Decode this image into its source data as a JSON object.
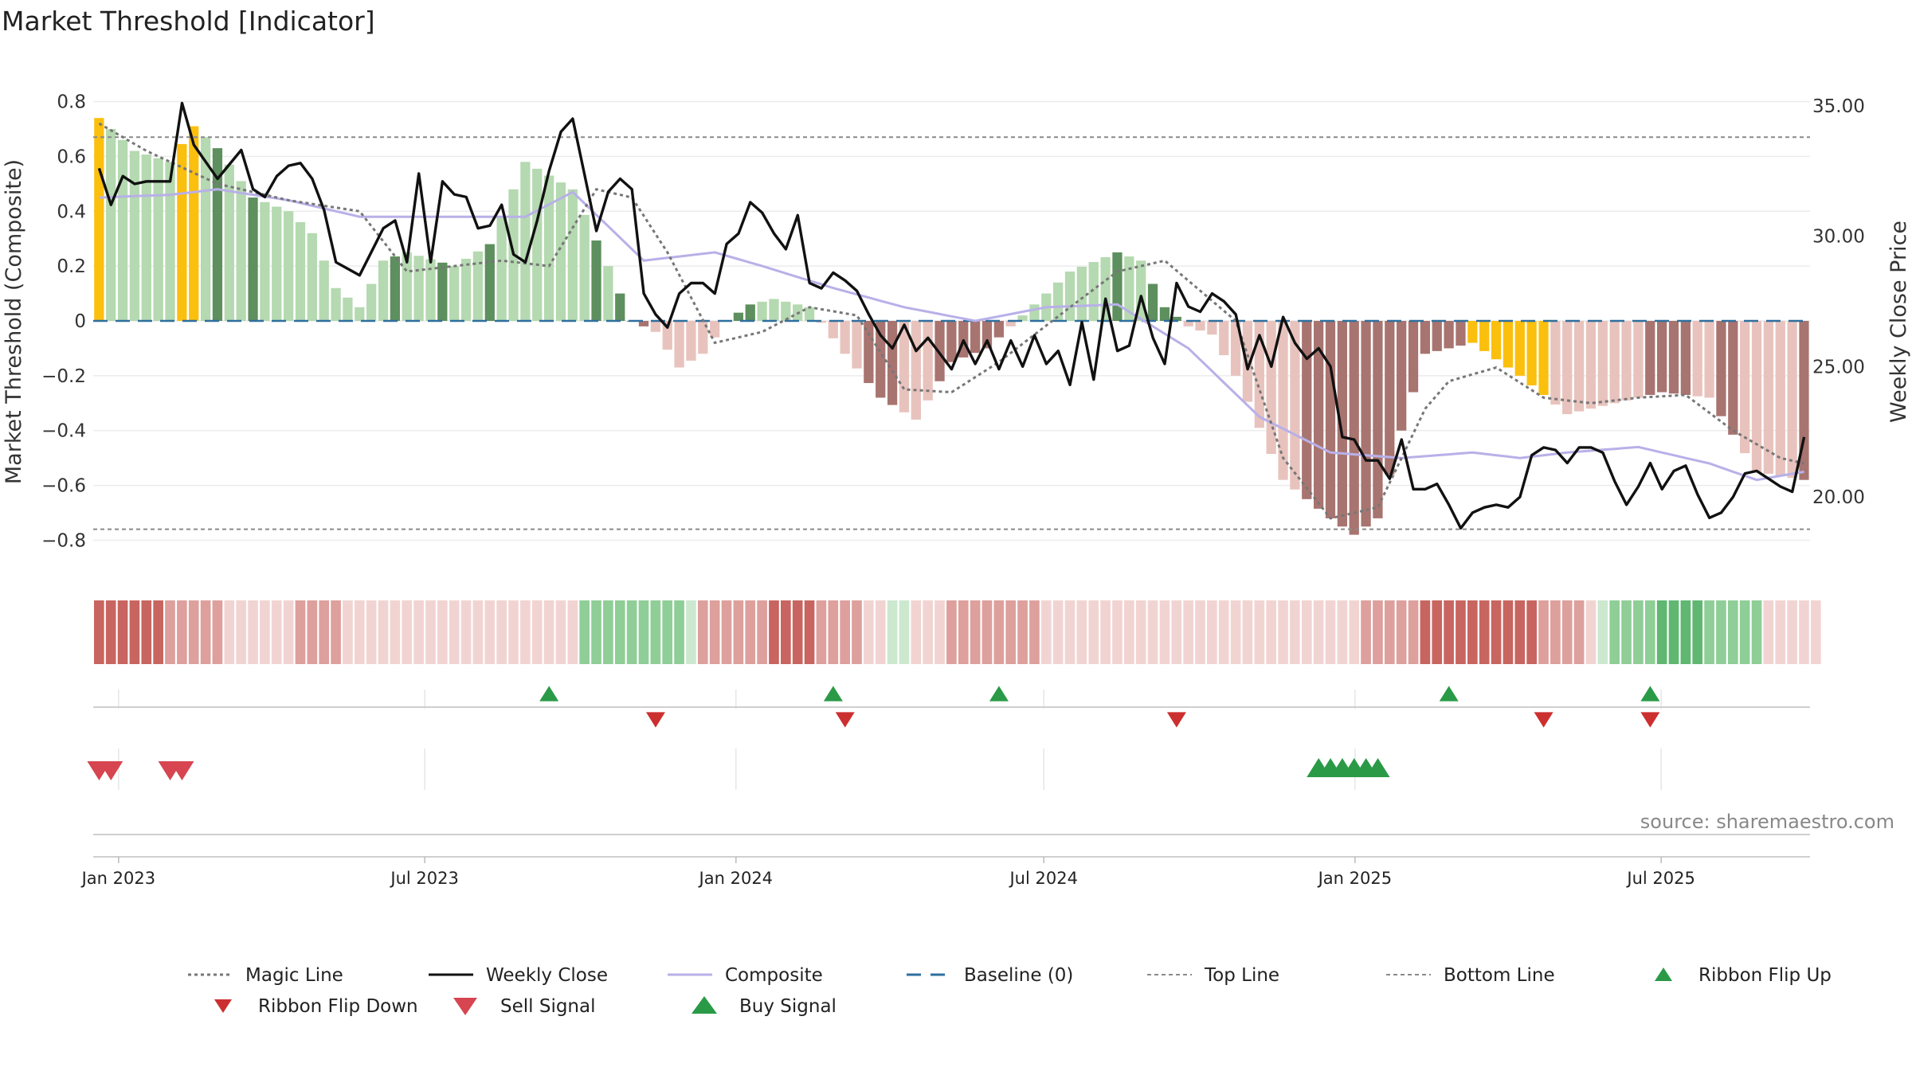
{
  "chart_data": {
    "type": "bar",
    "title": "Market Threshold [Indicator]",
    "ylabel": "Market Threshold (Composite)",
    "y2label": "Weekly Close Price",
    "ylim": [
      -0.88,
      0.88
    ],
    "y2lim": [
      17.5,
      36.0
    ],
    "y_ticks": [
      "0.8",
      "0.6",
      "0.4",
      "0.2",
      "0",
      "−0.2",
      "−0.4",
      "−0.6",
      "−0.8"
    ],
    "y_tick_values": [
      0.8,
      0.6,
      0.4,
      0.2,
      0,
      -0.2,
      -0.4,
      -0.6,
      -0.8
    ],
    "y2_ticks": [
      "35.00",
      "30.00",
      "25.00",
      "20.00"
    ],
    "y2_tick_values": [
      35,
      30,
      25,
      20
    ],
    "x_ticks": [
      "Jan 2023",
      "Jul 2023",
      "Jan 2024",
      "Jul 2024",
      "Jan 2025",
      "Jul 2025"
    ],
    "x_tick_dates": [
      "2023-01-01",
      "2023-07-01",
      "2024-01-01",
      "2024-07-01",
      "2025-01-01",
      "2025-07-01"
    ],
    "x_start": "2022-12-17",
    "weeks": 145,
    "top_line": 0.67,
    "bottom_line": -0.76,
    "grid": true,
    "legend_position": "bottom",
    "source": "source: sharemaestro.com",
    "colors": {
      "strong_pos": "#5e8f5e",
      "weak_pos": "#b5d9b0",
      "strong_neg": "#a87470",
      "weak_neg": "#e8c3bd",
      "extreme": "#fbbf0e",
      "weekly_close": "#111111",
      "composite": "#b8b0e8",
      "magic": "#777777",
      "baseline": "#2e6f9e",
      "buy": "#2a9a47",
      "sell": "#d64550"
    },
    "composite_bars": {
      "anchor_weeks": [
        0,
        3,
        6,
        8,
        10,
        13,
        16,
        18,
        20,
        22,
        24,
        26,
        30,
        33,
        36,
        40,
        43,
        45,
        47,
        49,
        51,
        53,
        55,
        57,
        60,
        63,
        66,
        69,
        72,
        75,
        78,
        82,
        86,
        88,
        90,
        92,
        94,
        96,
        100,
        104,
        106,
        108,
        110,
        112,
        116,
        120,
        124,
        128,
        132,
        136,
        140,
        144
      ],
      "anchor_values": [
        0.74,
        0.62,
        0.58,
        0.71,
        0.63,
        0.45,
        0.4,
        0.32,
        0.12,
        0.05,
        0.22,
        0.25,
        0.2,
        0.28,
        0.58,
        0.48,
        0.2,
        0.0,
        -0.04,
        -0.17,
        -0.12,
        0.0,
        0.06,
        0.08,
        0.05,
        -0.12,
        -0.28,
        -0.36,
        -0.15,
        -0.1,
        0.02,
        0.18,
        0.25,
        0.22,
        0.05,
        -0.02,
        -0.05,
        -0.2,
        -0.58,
        -0.72,
        -0.78,
        -0.72,
        -0.4,
        -0.12,
        -0.08,
        -0.2,
        -0.34,
        -0.3,
        -0.26,
        -0.28,
        -0.55,
        -0.58
      ],
      "classes": "EWWWWWWEEWSWWSWWWWWWWWWWWSWWWSWWWSWWWWWWWWSWSSSWWWWNNNSSNNNWWWWWWSSSWNNSSSSSSNWWWWWNNWSWWSSSWWWWWWWWWWSSSSSSSSSSSSSSEEEEEEEWWWWWWNNSSSSWWSSWWWWWSSSSWSSSSSSWW"
    },
    "magic_line": {
      "anchor_weeks": [
        0,
        4,
        10,
        16,
        22,
        26,
        30,
        34,
        38,
        42,
        45,
        48,
        52,
        56,
        60,
        64,
        68,
        72,
        76,
        82,
        86,
        90,
        96,
        100,
        104,
        108,
        112,
        114,
        118,
        122,
        126,
        130,
        134,
        138,
        142,
        144
      ],
      "anchor_values": [
        0.72,
        0.62,
        0.5,
        0.44,
        0.4,
        0.18,
        0.2,
        0.22,
        0.2,
        0.48,
        0.45,
        0.25,
        -0.08,
        -0.04,
        0.05,
        0.02,
        -0.25,
        -0.26,
        -0.15,
        0.05,
        0.18,
        0.22,
        0.0,
        -0.5,
        -0.72,
        -0.68,
        -0.32,
        -0.22,
        -0.17,
        -0.28,
        -0.3,
        -0.28,
        -0.27,
        -0.4,
        -0.5,
        -0.52
      ]
    },
    "composite_line": {
      "anchor_weeks": [
        0,
        6,
        10,
        16,
        22,
        30,
        36,
        40,
        46,
        52,
        56,
        62,
        68,
        74,
        80,
        86,
        92,
        98,
        104,
        110,
        116,
        120,
        124,
        130,
        136,
        140,
        144
      ],
      "anchor_values": [
        0.45,
        0.46,
        0.48,
        0.44,
        0.38,
        0.38,
        0.38,
        0.47,
        0.22,
        0.25,
        0.2,
        0.12,
        0.05,
        -0.0,
        0.05,
        0.06,
        -0.1,
        -0.35,
        -0.48,
        -0.5,
        -0.48,
        -0.5,
        -0.48,
        -0.46,
        -0.52,
        -0.58,
        -0.55
      ]
    },
    "weekly_close": {
      "anchor_weeks": [
        0,
        1,
        2,
        3,
        4,
        6,
        7,
        8,
        10,
        12,
        13,
        14,
        15,
        16,
        17,
        18,
        19,
        20,
        22,
        24,
        25,
        26,
        27,
        28,
        29,
        30,
        31,
        32,
        33,
        34,
        35,
        36,
        37,
        38,
        39,
        40,
        42,
        43,
        44,
        45,
        46,
        47,
        48,
        49,
        50,
        51,
        52,
        53,
        54,
        55,
        56,
        57,
        58,
        59,
        60,
        61,
        62,
        63,
        64,
        65,
        66,
        67,
        68,
        69,
        70,
        71,
        72,
        73,
        74,
        75,
        76,
        77,
        78,
        79,
        80,
        81,
        82,
        83,
        84,
        85,
        86,
        87,
        88,
        89,
        90,
        91,
        92,
        93,
        94,
        95,
        96,
        97,
        98,
        99,
        100,
        101,
        102,
        103,
        104,
        105,
        106,
        107,
        108,
        109,
        110,
        111,
        112,
        113,
        114,
        115,
        116,
        117,
        118,
        119,
        120,
        121,
        122,
        123,
        124,
        125,
        126,
        127,
        128,
        129,
        130,
        131,
        132,
        133,
        134,
        135,
        136,
        137,
        138,
        139,
        140,
        141,
        142,
        143,
        144
      ],
      "anchor_values": [
        32.6,
        31.2,
        32.3,
        32.0,
        32.1,
        32.1,
        35.1,
        33.5,
        32.2,
        33.3,
        31.8,
        31.5,
        32.3,
        32.7,
        32.8,
        32.2,
        31.0,
        29.0,
        28.5,
        30.3,
        30.6,
        29.0,
        32.4,
        29.0,
        32.1,
        31.6,
        31.5,
        30.3,
        30.4,
        31.2,
        29.3,
        29.0,
        30.6,
        32.5,
        34.0,
        34.5,
        30.2,
        31.7,
        32.2,
        31.8,
        27.8,
        27.0,
        26.5,
        27.8,
        28.2,
        28.2,
        27.8,
        29.7,
        30.1,
        31.3,
        30.9,
        30.1,
        29.5,
        30.8,
        28.2,
        28.0,
        28.6,
        28.3,
        27.9,
        27.0,
        26.2,
        25.7,
        26.6,
        25.6,
        26.1,
        25.5,
        24.9,
        26.0,
        25.1,
        26.0,
        24.9,
        26.0,
        25.0,
        26.2,
        25.1,
        25.6,
        24.3,
        26.7,
        24.5,
        27.6,
        25.6,
        25.8,
        27.7,
        26.1,
        25.1,
        28.2,
        27.3,
        27.1,
        27.8,
        27.5,
        27.0,
        24.9,
        26.2,
        25.0,
        26.9,
        25.9,
        25.3,
        25.7,
        25.0,
        22.3,
        22.2,
        21.4,
        21.4,
        20.7,
        22.2,
        20.3,
        20.3,
        20.5,
        19.7,
        18.8,
        19.4,
        19.6,
        19.7,
        19.6,
        20.0,
        21.6,
        21.9,
        21.8,
        21.3,
        21.9,
        21.9,
        21.7,
        20.6,
        19.7,
        20.4,
        21.3,
        20.3,
        21.0,
        21.2,
        20.1,
        19.2,
        19.4,
        20.0,
        20.9,
        21.0,
        20.7,
        20.4,
        20.2,
        21.1,
        22.3
      ]
    },
    "ribbon": {
      "levels": [
        -3,
        -3,
        -3,
        -3,
        -3,
        -3,
        -2,
        -2,
        -2,
        -2,
        -2,
        -1,
        -1,
        -1,
        -1,
        -1,
        -1,
        -2,
        -2,
        -2,
        -2,
        -1,
        -1,
        -1,
        -1,
        -1,
        -1,
        -1,
        -1,
        -1,
        -1,
        -1,
        -1,
        -1,
        -1,
        -1,
        -1,
        -1,
        -1,
        -1,
        -1,
        2,
        2,
        2,
        2,
        2,
        2,
        2,
        2,
        2,
        1,
        -2,
        -2,
        -2,
        -2,
        -2,
        -2,
        -3,
        -3,
        -3,
        -3,
        -2,
        -2,
        -2,
        -2,
        -1,
        -1,
        1,
        1,
        -1,
        -1,
        -1,
        -2,
        -2,
        -2,
        -2,
        -2,
        -2,
        -2,
        -2,
        -1,
        -1,
        -1,
        -1,
        -1,
        -1,
        -1,
        -1,
        -1,
        -1,
        -1,
        -1,
        -1,
        -1,
        -1,
        -1,
        -1,
        -1,
        -1,
        -1,
        -1,
        -1,
        -1,
        -1,
        -1,
        -1,
        -1,
        -2,
        -2,
        -2,
        -2,
        -2,
        -3,
        -3,
        -3,
        -3,
        -3,
        -3,
        -3,
        -3,
        -3,
        -3,
        -2,
        -2,
        -2,
        -2,
        -1,
        1,
        2,
        2,
        2,
        2,
        3,
        3,
        3,
        3,
        2,
        2,
        2,
        2,
        2,
        -1,
        -1,
        -1,
        -1,
        -1
      ],
      "colors_by_level": {
        "3": "#5fb771",
        "2": "#8fce97",
        "1": "#cce8cf",
        "-1": "#f1d4d2",
        "-2": "#dda09c",
        "-3": "#c86560"
      }
    },
    "ribbon_flip_up_weeks": [
      38,
      62,
      76,
      114,
      131
    ],
    "ribbon_flip_down_weeks": [
      47,
      63,
      91,
      122,
      131
    ],
    "sell_signal_weeks": [
      0,
      1,
      6,
      7
    ],
    "buy_signal_weeks": [
      103,
      104,
      105,
      106,
      107,
      108
    ],
    "legend": [
      {
        "key": "magic",
        "label": "Magic Line",
        "style": "dotted"
      },
      {
        "key": "weekly_close",
        "label": "Weekly Close",
        "style": "solid"
      },
      {
        "key": "composite",
        "label": "Composite",
        "style": "solid"
      },
      {
        "key": "baseline",
        "label": "Baseline (0)",
        "style": "dashed"
      },
      {
        "key": "top_line",
        "label": "Top Line",
        "style": "dashed-thin"
      },
      {
        "key": "bottom_line",
        "label": "Bottom Line",
        "style": "dashed-thin"
      },
      {
        "key": "flip_up",
        "label": "Ribbon Flip Up",
        "style": "tri-up"
      },
      {
        "key": "flip_down",
        "label": "Ribbon Flip Down",
        "style": "tri-down-small"
      },
      {
        "key": "sell",
        "label": "Sell Signal",
        "style": "tri-down"
      },
      {
        "key": "buy",
        "label": "Buy Signal",
        "style": "tri-up-large"
      }
    ]
  }
}
